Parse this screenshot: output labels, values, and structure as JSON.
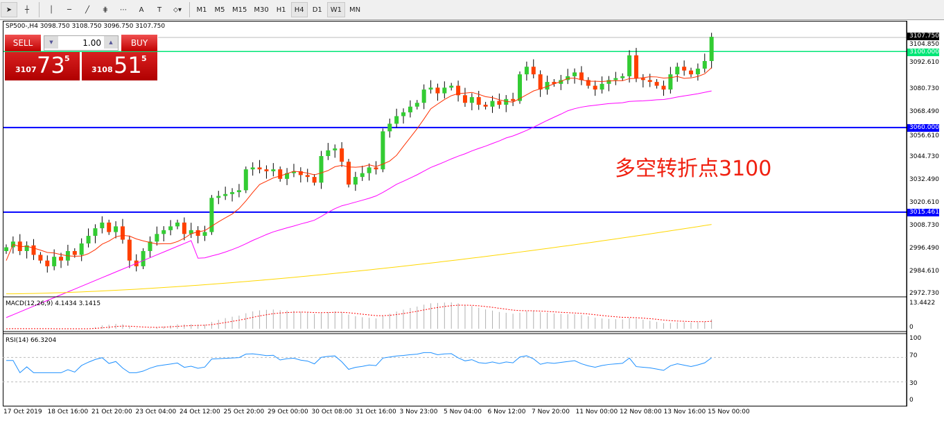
{
  "toolbar": {
    "tools": [
      "cursor-icon",
      "crosshair-icon",
      "vertical-line-icon",
      "horizontal-line-icon",
      "trendline-icon",
      "fibonacci-icon",
      "grid-icon",
      "text-icon",
      "label-icon",
      "shapes-icon"
    ],
    "text_tool": "A",
    "timeframes": [
      "M1",
      "M5",
      "M15",
      "M30",
      "H1",
      "H4",
      "D1",
      "W1",
      "MN"
    ],
    "selected_timeframe": "H4"
  },
  "symbol_line": "SP500-,H4  3098.750 3108.750 3096.750 3107.750",
  "trade_panel": {
    "sell_label": "SELL",
    "buy_label": "BUY",
    "lots": "1.00",
    "sell_prefix": "3107",
    "sell_big": "73",
    "sell_sup": "5",
    "buy_prefix": "3108",
    "buy_big": "51",
    "buy_sup": "5"
  },
  "annotation": "多空转折点3100",
  "price_axis": {
    "ticks": [
      "3104.850",
      "3092.610",
      "3080.730",
      "3068.490",
      "3056.610",
      "3044.730",
      "3032.490",
      "3020.610",
      "3008.730",
      "2996.490",
      "2984.610",
      "2972.730"
    ],
    "current": "3107.750",
    "lines": [
      {
        "label": "3100.000",
        "value": 3100,
        "color": "#00e676"
      },
      {
        "label": "3060.000",
        "value": 3060,
        "color": "#0000ff"
      },
      {
        "label": "3015.461",
        "value": 3015.461,
        "color": "#0000ff"
      }
    ]
  },
  "macd": {
    "label": "MACD(12,26,9) 4.1434 3.1415",
    "max": "13.4422",
    "zero": "0"
  },
  "rsi": {
    "label": "RSI(14) 66.3204",
    "levels": [
      "100",
      "70",
      "30",
      "0"
    ]
  },
  "time_axis": [
    "17 Oct 2019",
    "18 Oct 16:00",
    "21 Oct 20:00",
    "23 Oct 04:00",
    "24 Oct 12:00",
    "25 Oct 20:00",
    "29 Oct 00:00",
    "30 Oct 08:00",
    "31 Oct 16:00",
    "3 Nov 23:00",
    "5 Nov 04:00",
    "6 Nov 12:00",
    "7 Nov 20:00",
    "11 Nov 00:00",
    "12 Nov 08:00",
    "13 Nov 16:00",
    "15 Nov 00:00"
  ],
  "colors": {
    "bull": "#33cc33",
    "bear": "#ff4000",
    "ma_fast": "#ff3000",
    "ma_mid": "#ff00ff",
    "ma_long": "#ffd700",
    "macd_signal": "#ff0000",
    "rsi": "#1e90ff"
  },
  "closes": [
    2997,
    3000,
    2995,
    2998,
    2993,
    2990,
    2987,
    2992,
    2990,
    2995,
    2993,
    2999,
    3003,
    3007,
    3010,
    3005,
    3008,
    3001,
    2990,
    2987,
    2995,
    3000,
    3004,
    3006,
    3008,
    3010,
    3004,
    3006,
    3003,
    3005,
    3023,
    3024,
    3025,
    3026,
    3027,
    3038,
    3039,
    3038,
    3037,
    3038,
    3033,
    3036,
    3037,
    3035,
    3034,
    3031,
    3045,
    3048,
    3049,
    3042,
    3030,
    3034,
    3036,
    3039,
    3038,
    3058,
    3062,
    3066,
    3068,
    3071,
    3073,
    3080,
    3081,
    3078,
    3081,
    3082,
    3077,
    3073,
    3076,
    3072,
    3071,
    3074,
    3072,
    3075,
    3074,
    3088,
    3092,
    3088,
    3080,
    3084,
    3083,
    3085,
    3087,
    3089,
    3085,
    3082,
    3080,
    3083,
    3085,
    3086,
    3087,
    3098,
    3086,
    3085,
    3084,
    3082,
    3080,
    3088,
    3092,
    3090,
    3088,
    3091,
    3095,
    3107.75
  ],
  "ma_long_range": [
    2972.5,
    3009
  ]
}
